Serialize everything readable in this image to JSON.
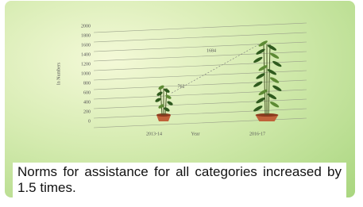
{
  "chart_data": {
    "type": "bar",
    "ylabel": "In Numbers",
    "xlabel": "Year",
    "categories": [
      "2013-14",
      "2016-17"
    ],
    "values": [
      762,
      1684
    ],
    "ylim": [
      0,
      2000
    ],
    "yticks": [
      0,
      200,
      400,
      600,
      800,
      1000,
      1200,
      1400,
      1600,
      1800,
      2000
    ],
    "grid": true
  },
  "caption": "Norms for assistance for all categories increased by 1.5 times."
}
